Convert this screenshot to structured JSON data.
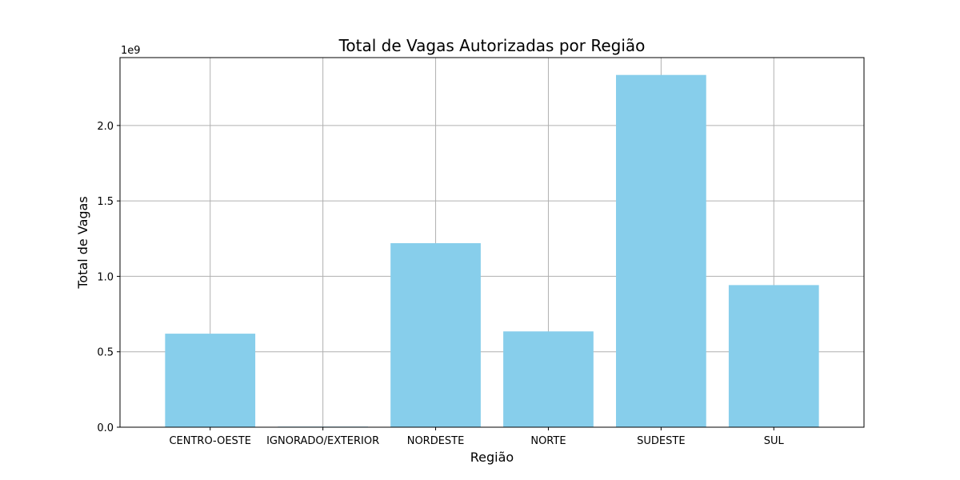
{
  "chart_data": {
    "type": "bar",
    "title": "Total de Vagas Autorizadas por Região",
    "xlabel": "Região",
    "ylabel": "Total de Vagas",
    "offset_label": "1e9",
    "categories": [
      "CENTRO-OESTE",
      "IGNORADO/EXTERIOR",
      "NORDESTE",
      "NORTE",
      "SUDESTE",
      "SUL"
    ],
    "values": [
      620000000,
      4000000,
      1220000000,
      635000000,
      2335000000,
      942000000
    ],
    "ylim": [
      0,
      2450000000
    ],
    "yticks": [
      0,
      500000000,
      1000000000,
      1500000000,
      2000000000
    ],
    "ytick_labels": [
      "0.0",
      "0.5",
      "1.0",
      "1.5",
      "2.0"
    ],
    "grid": true,
    "bar_color": "#87ceeb"
  }
}
